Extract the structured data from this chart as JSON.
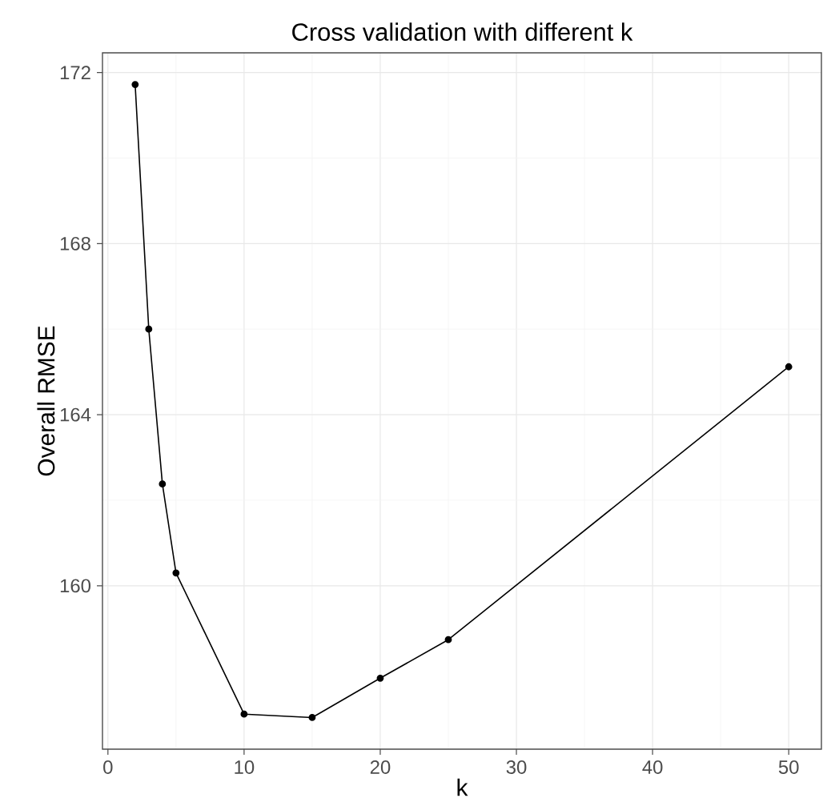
{
  "chart_data": {
    "type": "line",
    "title": "Cross validation with different k",
    "xlabel": "k",
    "ylabel": "Overall RMSE",
    "x": [
      2,
      3,
      4,
      5,
      10,
      15,
      20,
      25,
      50
    ],
    "values": [
      171.72,
      166.0,
      162.38,
      160.3,
      157.0,
      156.92,
      157.84,
      158.74,
      165.12
    ],
    "color": "#000000",
    "marker": "circle",
    "line_style": "solid",
    "grid": true,
    "xlim": [
      -0.4,
      52.4
    ],
    "xticks": [
      0,
      10,
      20,
      30,
      40,
      50
    ],
    "ylim": [
      156.18,
      172.46
    ],
    "yticks": [
      160,
      164,
      168,
      172
    ]
  }
}
